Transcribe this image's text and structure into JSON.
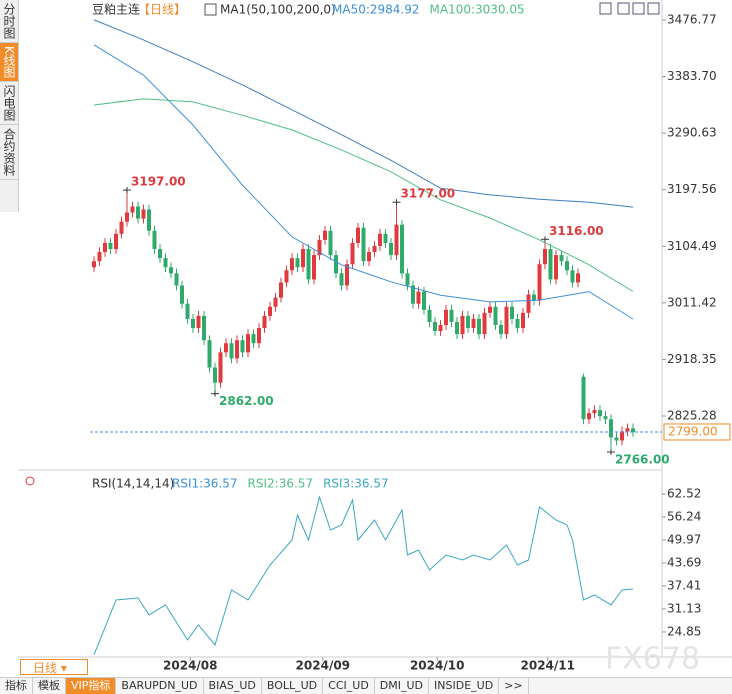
{
  "sidebar": [
    "分时图",
    "K线图",
    "闪电图",
    "合约资料"
  ],
  "header": {
    "symbol": "豆粕主连",
    "period": "【日线】",
    "indicator": "MA1(50,100,200,0)"
  },
  "period_button": "日线",
  "toolbar": [
    "指标",
    "模板",
    "VIP指标",
    "BARUPDN_UD",
    "BIAS_UD",
    "BOLL_UD",
    "CCI_UD",
    "DMI_UD",
    "INSIDE_UD",
    ">>"
  ],
  "watermark": "FX678",
  "chart_data": [
    {
      "type": "candlestick",
      "up_color": "#e0393e",
      "down_color": "#2eaa6a",
      "xlim": [
        0,
        98
      ],
      "ylim": [
        2749.6,
        3476.77
      ],
      "yticks": [
        3476.77,
        {
          "value": 3383.7,
          "label": "3383.70"
        },
        3290.63,
        3197.56,
        3104.49,
        3011.42,
        2918.35,
        2825.28
      ],
      "ohlc": [
        [
          3070,
          3088,
          3062,
          3080
        ],
        [
          3080,
          3103,
          3072,
          3095
        ],
        [
          3095,
          3118,
          3087,
          3110
        ],
        [
          3110,
          3118,
          3092,
          3100
        ],
        [
          3100,
          3133,
          3092,
          3125
        ],
        [
          3125,
          3153,
          3117,
          3145
        ],
        [
          3145,
          3197,
          3137,
          3160
        ],
        [
          3160,
          3178,
          3152,
          3170
        ],
        [
          3170,
          3178,
          3142,
          3150
        ],
        [
          3150,
          3173,
          3142,
          3165
        ],
        [
          3165,
          3173,
          3122,
          3130
        ],
        [
          3130,
          3138,
          3092,
          3100
        ],
        [
          3100,
          3108,
          3077,
          3085
        ],
        [
          3085,
          3093,
          3062,
          3070
        ],
        [
          3070,
          3078,
          3052,
          3060
        ],
        [
          3060,
          3068,
          3032,
          3040
        ],
        [
          3040,
          3048,
          3002,
          3010
        ],
        [
          3010,
          3018,
          2977,
          2985
        ],
        [
          2985,
          2993,
          2962,
          2970
        ],
        [
          2970,
          2998,
          2962,
          2990
        ],
        [
          2990,
          2998,
          2942,
          2950
        ],
        [
          2950,
          2958,
          2897,
          2905
        ],
        [
          2905,
          2913,
          2862,
          2880
        ],
        [
          2880,
          2938,
          2872,
          2930
        ],
        [
          2930,
          2953,
          2922,
          2945
        ],
        [
          2945,
          2953,
          2912,
          2920
        ],
        [
          2920,
          2958,
          2912,
          2950
        ],
        [
          2950,
          2958,
          2922,
          2930
        ],
        [
          2930,
          2968,
          2922,
          2960
        ],
        [
          2960,
          2968,
          2937,
          2945
        ],
        [
          2945,
          2978,
          2937,
          2970
        ],
        [
          2970,
          2998,
          2962,
          2990
        ],
        [
          2990,
          3013,
          2982,
          3005
        ],
        [
          3005,
          3028,
          2997,
          3020
        ],
        [
          3020,
          3053,
          3012,
          3045
        ],
        [
          3045,
          3073,
          3037,
          3065
        ],
        [
          3065,
          3093,
          3057,
          3085
        ],
        [
          3085,
          3093,
          3062,
          3070
        ],
        [
          3070,
          3108,
          3062,
          3100
        ],
        [
          3100,
          3108,
          3042,
          3050
        ],
        [
          3050,
          3098,
          3042,
          3090
        ],
        [
          3090,
          3123,
          3082,
          3115
        ],
        [
          3115,
          3138,
          3107,
          3130
        ],
        [
          3130,
          3138,
          3082,
          3090
        ],
        [
          3090,
          3098,
          3052,
          3060
        ],
        [
          3060,
          3068,
          3032,
          3040
        ],
        [
          3040,
          3083,
          3032,
          3075
        ],
        [
          3075,
          3118,
          3067,
          3110
        ],
        [
          3110,
          3143,
          3102,
          3135
        ],
        [
          3135,
          3143,
          3072,
          3080
        ],
        [
          3080,
          3103,
          3072,
          3095
        ],
        [
          3095,
          3113,
          3087,
          3105
        ],
        [
          3105,
          3133,
          3097,
          3125
        ],
        [
          3125,
          3133,
          3102,
          3110
        ],
        [
          3110,
          3118,
          3082,
          3090
        ],
        [
          3090,
          3177,
          3082,
          3140
        ],
        [
          3140,
          3148,
          3052,
          3060
        ],
        [
          3060,
          3068,
          3032,
          3040
        ],
        [
          3040,
          3048,
          3002,
          3010
        ],
        [
          3010,
          3038,
          3002,
          3030
        ],
        [
          3030,
          3038,
          2992,
          3000
        ],
        [
          3000,
          3008,
          2972,
          2980
        ],
        [
          2980,
          2988,
          2957,
          2965
        ],
        [
          2965,
          2983,
          2957,
          2975
        ],
        [
          2975,
          3008,
          2967,
          3000
        ],
        [
          3000,
          3008,
          2972,
          2980
        ],
        [
          2980,
          2988,
          2952,
          2960
        ],
        [
          2960,
          2998,
          2952,
          2990
        ],
        [
          2990,
          2998,
          2962,
          2970
        ],
        [
          2970,
          2993,
          2962,
          2985
        ],
        [
          2985,
          2993,
          2952,
          2960
        ],
        [
          2960,
          3003,
          2952,
          2995
        ],
        [
          2995,
          3013,
          2987,
          3005
        ],
        [
          3005,
          3013,
          2967,
          2975
        ],
        [
          2975,
          2983,
          2952,
          2960
        ],
        [
          2960,
          3013,
          2952,
          3005
        ],
        [
          3005,
          3013,
          2977,
          2985
        ],
        [
          2985,
          2993,
          2962,
          2970
        ],
        [
          2970,
          3003,
          2962,
          2995
        ],
        [
          2995,
          3033,
          2987,
          3025
        ],
        [
          3025,
          3033,
          3007,
          3015
        ],
        [
          3015,
          3083,
          3007,
          3075
        ],
        [
          3075,
          3116,
          3067,
          3100
        ],
        [
          3100,
          3108,
          3042,
          3050
        ],
        [
          3050,
          3098,
          3042,
          3090
        ],
        [
          3090,
          3098,
          3072,
          3080
        ],
        [
          3080,
          3088,
          3057,
          3065
        ],
        [
          3065,
          3073,
          3037,
          3045
        ],
        [
          3045,
          3068,
          3037,
          3060
        ],
        [
          2890,
          2895,
          2812,
          2820
        ],
        [
          2820,
          2838,
          2812,
          2830
        ],
        [
          2830,
          2843,
          2822,
          2835
        ],
        [
          2835,
          2843,
          2817,
          2825
        ],
        [
          2825,
          2833,
          2812,
          2820
        ],
        [
          2820,
          2828,
          2766,
          2790
        ],
        [
          2790,
          2798,
          2777,
          2785
        ],
        [
          2785,
          2808,
          2777,
          2800
        ],
        [
          2800,
          2813,
          2792,
          2805
        ],
        [
          2805,
          2813,
          2791,
          2799
        ]
      ],
      "series": [
        {
          "name": "MA50:2984.92",
          "color": "#3b8fd9",
          "x": [
            0,
            9,
            18,
            27,
            36,
            45,
            54,
            63,
            72,
            81,
            90,
            98
          ],
          "values": [
            3436,
            3386,
            3304,
            3205,
            3120,
            3074,
            3046,
            3024,
            3013,
            3016,
            3030,
            2984.92
          ]
        },
        {
          "name": "MA100:3030.05",
          "color": "#4fbf85",
          "x": [
            0,
            9,
            18,
            27,
            36,
            45,
            54,
            63,
            72,
            81,
            90,
            98
          ],
          "values": [
            3337,
            3347,
            3342,
            3320,
            3296,
            3263,
            3227,
            3181,
            3151,
            3115,
            3074,
            3030.05
          ]
        },
        {
          "color": "#3a7fc0",
          "x": [
            0,
            9,
            18,
            27,
            36,
            45,
            54,
            63,
            72,
            81,
            90,
            98
          ],
          "values": [
            3477,
            3444,
            3408,
            3370,
            3329,
            3288,
            3246,
            3200,
            3189,
            3182,
            3177,
            3169
          ]
        }
      ],
      "annotations": [
        {
          "x": 6,
          "value": 3197,
          "label": "3197.00",
          "color": "#e0393e"
        },
        {
          "x": 22,
          "value": 2862,
          "label": "2862.00",
          "color": "#2eaa6a"
        },
        {
          "x": 55,
          "value": 3177,
          "label": "3177.00",
          "color": "#e0393e"
        },
        {
          "x": 82,
          "value": 3116,
          "label": "3116.00",
          "color": "#e0393e"
        },
        {
          "x": 94,
          "value": 2766,
          "label": "2766.00",
          "color": "#2eaa6a"
        }
      ],
      "last_price": {
        "value": 2799,
        "label": "2799.00",
        "color": "#f28c28"
      }
    },
    {
      "type": "line",
      "title": "RSI(14,14,14)",
      "legend": [
        {
          "label": "RSI1:36.57",
          "color": "#3b8fd9"
        },
        {
          "label": "RSI2:36.57",
          "color": "#4fbf85"
        },
        {
          "label": "RSI3:36.57",
          "color": "#3aa8c0"
        }
      ],
      "xlim": [
        0,
        98
      ],
      "ylim": [
        18,
        62.52
      ],
      "yticks": [
        62.52,
        56.24,
        49.97,
        43.69,
        37.41,
        31.13,
        24.85
      ],
      "xticks": [
        {
          "value": 17.5,
          "label": "2024/08"
        },
        {
          "value": 41.6,
          "label": "2024/09"
        },
        {
          "value": 62.4,
          "label": "2024/10"
        },
        {
          "value": 82.5,
          "label": "2024/11"
        }
      ],
      "series": [
        {
          "color": "#3aa8c0",
          "x": [
            0,
            4,
            8,
            10,
            13,
            17,
            19,
            22,
            25,
            28,
            32,
            36,
            37,
            39,
            41,
            43,
            45,
            47,
            48,
            51,
            53,
            56,
            57,
            59,
            61,
            64,
            67,
            69,
            72,
            75,
            77,
            79,
            81,
            84,
            86,
            87,
            89,
            91,
            94,
            96,
            98
          ],
          "values": [
            18.57,
            33.58,
            34.13,
            29.49,
            32.22,
            22.66,
            26.76,
            21.3,
            36.31,
            33.58,
            43.14,
            49.96,
            56.79,
            49.96,
            61.7,
            52.69,
            54.06,
            60.88,
            49.96,
            55.42,
            49.96,
            58.15,
            45.87,
            47.23,
            41.77,
            45.87,
            44.5,
            45.87,
            44.5,
            48.6,
            43.14,
            44.5,
            58.97,
            55.42,
            54.06,
            49.96,
            33.58,
            34.95,
            32.22,
            36.31,
            36.57
          ]
        }
      ]
    }
  ]
}
